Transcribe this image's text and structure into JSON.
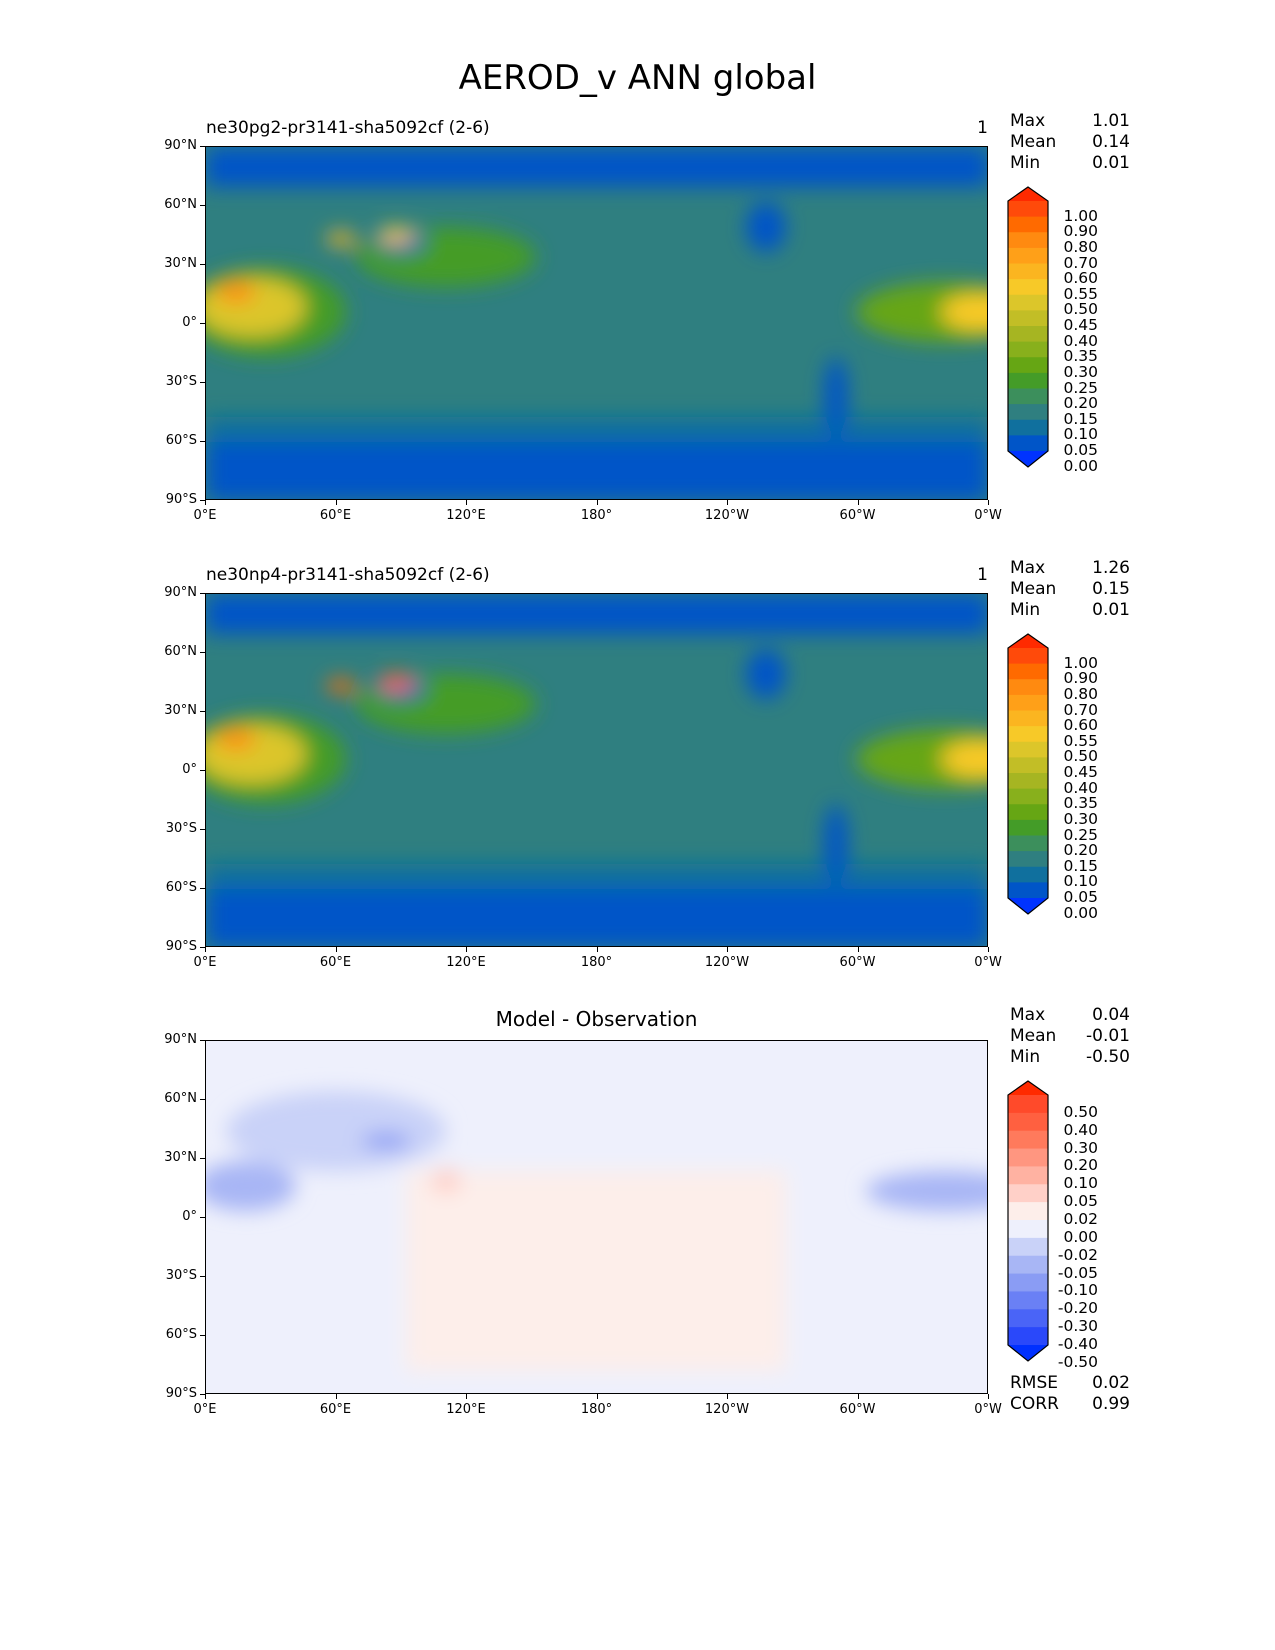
{
  "title": "AEROD_v ANN global",
  "chart_data": [
    {
      "type": "heatmap",
      "title_left": "ne30pg2-pr3141-sha5092cf (2-6)",
      "title_center": "",
      "title_right": "1",
      "stats": [
        {
          "label": "Max",
          "value": "1.01"
        },
        {
          "label": "Mean",
          "value": "0.14"
        },
        {
          "label": "Min",
          "value": "0.01"
        }
      ],
      "colorbar_levels": [
        "1.00",
        "0.90",
        "0.80",
        "0.70",
        "0.60",
        "0.55",
        "0.50",
        "0.45",
        "0.40",
        "0.35",
        "0.30",
        "0.25",
        "0.20",
        "0.15",
        "0.10",
        "0.05",
        "0.00"
      ],
      "colorbar_colors": [
        "#ff2a00",
        "#ff4a0a",
        "#ff6a00",
        "#ff8a10",
        "#ffa018",
        "#fbb520",
        "#f7c928",
        "#dcc62a",
        "#c2be26",
        "#a6b522",
        "#88b01c",
        "#66a614",
        "#449c28",
        "#3c8f5c",
        "#2f7f80",
        "#10709e",
        "#0055c8",
        "#0033ff"
      ],
      "background": "#2f7f80",
      "xticks": [
        "0°E",
        "60°E",
        "120°E",
        "180°",
        "120°W",
        "60°W",
        "0°W"
      ],
      "yticks": [
        "90°N",
        "60°N",
        "30°N",
        "0°",
        "30°S",
        "60°S",
        "90°S"
      ]
    },
    {
      "type": "heatmap",
      "title_left": "ne30np4-pr3141-sha5092cf (2-6)",
      "title_center": "",
      "title_right": "1",
      "stats": [
        {
          "label": "Max",
          "value": "1.26"
        },
        {
          "label": "Mean",
          "value": "0.15"
        },
        {
          "label": "Min",
          "value": "0.01"
        }
      ],
      "colorbar_levels": [
        "1.00",
        "0.90",
        "0.80",
        "0.70",
        "0.60",
        "0.55",
        "0.50",
        "0.45",
        "0.40",
        "0.35",
        "0.30",
        "0.25",
        "0.20",
        "0.15",
        "0.10",
        "0.05",
        "0.00"
      ],
      "colorbar_colors": [
        "#ff2a00",
        "#ff4a0a",
        "#ff6a00",
        "#ff8a10",
        "#ffa018",
        "#fbb520",
        "#f7c928",
        "#dcc62a",
        "#c2be26",
        "#a6b522",
        "#88b01c",
        "#66a614",
        "#449c28",
        "#3c8f5c",
        "#2f7f80",
        "#10709e",
        "#0055c8",
        "#0033ff"
      ],
      "background": "#2f7f80",
      "xticks": [
        "0°E",
        "60°E",
        "120°E",
        "180°",
        "120°W",
        "60°W",
        "0°W"
      ],
      "yticks": [
        "90°N",
        "60°N",
        "30°N",
        "0°",
        "30°S",
        "60°S",
        "90°S"
      ]
    },
    {
      "type": "heatmap",
      "title_left": "",
      "title_center": "Model - Observation",
      "title_right": "",
      "stats": [
        {
          "label": "Max",
          "value": "0.04"
        },
        {
          "label": "Mean",
          "value": "-0.01"
        },
        {
          "label": "Min",
          "value": "-0.50"
        }
      ],
      "colorbar_levels": [
        "0.50",
        "0.40",
        "0.30",
        "0.20",
        "0.10",
        "0.05",
        "0.02",
        "0.00",
        "-0.02",
        "-0.05",
        "-0.10",
        "-0.20",
        "-0.30",
        "-0.40",
        "-0.50"
      ],
      "colorbar_colors": [
        "#ff2a00",
        "#ff4a2a",
        "#ff6040",
        "#ff7a5c",
        "#ff9680",
        "#ffb2a2",
        "#ffd0c8",
        "#fdeeea",
        "#eef0fc",
        "#c9d2f8",
        "#a8b6f5",
        "#8a9cf4",
        "#6a80f5",
        "#4a64f7",
        "#2a48fa",
        "#0030ff"
      ],
      "background": "#eef0fc",
      "footer_stats": [
        {
          "label": "RMSE",
          "value": "0.02"
        },
        {
          "label": "CORR",
          "value": "0.99"
        }
      ],
      "xticks": [
        "0°E",
        "60°E",
        "120°E",
        "180°",
        "120°W",
        "60°W",
        "0°W"
      ],
      "yticks": [
        "90°N",
        "60°N",
        "30°N",
        "0°",
        "30°S",
        "60°S",
        "90°S"
      ]
    }
  ]
}
